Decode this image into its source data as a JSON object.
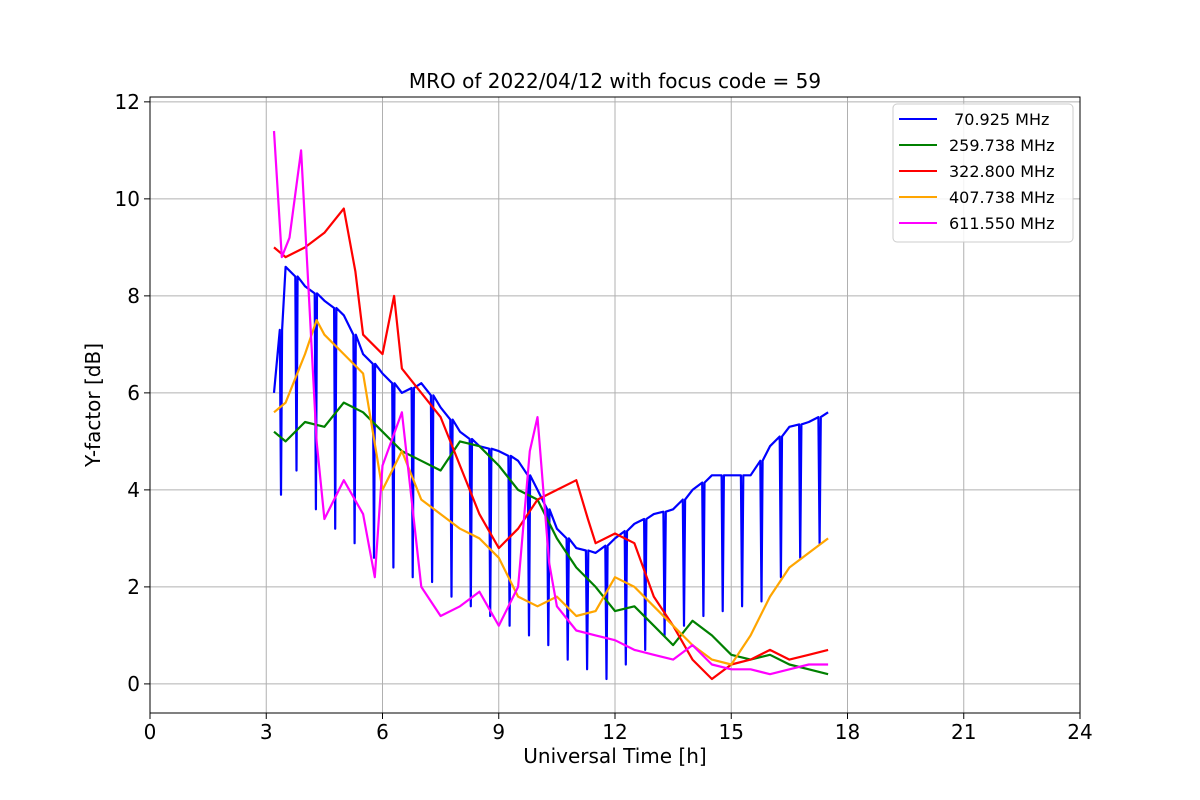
{
  "chart_data": {
    "type": "line",
    "title": "MRO of 2022/04/12 with focus code = 59",
    "xlabel": "Universal Time [h]",
    "ylabel": "Y-factor [dB]",
    "xlim": [
      0,
      24
    ],
    "ylim": [
      -0.6,
      12.1
    ],
    "xticks": [
      0,
      3,
      6,
      9,
      12,
      15,
      18,
      21,
      24
    ],
    "yticks": [
      0,
      2,
      4,
      6,
      8,
      10,
      12
    ],
    "grid": true,
    "legend_position": "top-right",
    "series": [
      {
        "name": " 70.925 MHz",
        "color": "#0000ff",
        "x": [
          3.2,
          3.5,
          4.0,
          4.5,
          5.0,
          5.5,
          6.0,
          6.5,
          7.0,
          7.5,
          8.0,
          8.5,
          9.0,
          9.5,
          10.0,
          10.5,
          11.0,
          11.5,
          12.0,
          12.5,
          13.0,
          13.5,
          14.0,
          14.5,
          15.0,
          15.5,
          16.0,
          16.5,
          17.0,
          17.5
        ],
        "values": [
          6.0,
          8.6,
          8.2,
          7.9,
          7.6,
          6.8,
          6.4,
          6.0,
          6.2,
          5.7,
          5.2,
          4.9,
          4.8,
          4.6,
          4.0,
          3.2,
          2.8,
          2.7,
          3.0,
          3.3,
          3.5,
          3.6,
          4.0,
          4.3,
          4.3,
          4.3,
          4.9,
          5.3,
          5.4,
          5.6
        ],
        "dip_to": [
          3.9,
          4.4,
          3.6,
          3.2,
          2.9,
          2.6,
          2.4,
          2.2,
          2.1,
          1.8,
          1.6,
          1.4,
          1.2,
          1.0,
          0.8,
          0.5,
          0.3,
          0.1,
          0.4,
          0.7,
          1.0,
          1.2,
          1.4,
          1.5,
          1.6,
          1.7,
          2.2,
          2.6,
          2.9,
          3.2
        ]
      },
      {
        "name": "259.738 MHz",
        "color": "#008000",
        "x": [
          3.2,
          3.5,
          4.0,
          4.5,
          5.0,
          5.5,
          6.0,
          6.5,
          7.0,
          7.5,
          8.0,
          8.5,
          9.0,
          9.5,
          10.0,
          10.5,
          11.0,
          11.5,
          12.0,
          12.5,
          13.0,
          13.5,
          14.0,
          14.5,
          15.0,
          15.5,
          16.0,
          16.5,
          17.0,
          17.5
        ],
        "values": [
          5.2,
          5.0,
          5.4,
          5.3,
          5.8,
          5.6,
          5.2,
          4.8,
          4.6,
          4.4,
          5.0,
          4.9,
          4.5,
          4.0,
          3.8,
          3.0,
          2.4,
          2.0,
          1.5,
          1.6,
          1.2,
          0.8,
          1.3,
          1.0,
          0.6,
          0.5,
          0.6,
          0.4,
          0.3,
          0.2
        ]
      },
      {
        "name": "322.800 MHz",
        "color": "#ff0000",
        "x": [
          3.2,
          3.5,
          4.0,
          4.5,
          5.0,
          5.3,
          5.5,
          6.0,
          6.3,
          6.5,
          7.0,
          7.5,
          8.0,
          8.5,
          9.0,
          9.5,
          10.0,
          10.5,
          11.0,
          11.3,
          11.5,
          12.0,
          12.5,
          13.0,
          13.5,
          14.0,
          14.5,
          15.0,
          15.5,
          16.0,
          16.5,
          17.0,
          17.5
        ],
        "values": [
          9.0,
          8.8,
          9.0,
          9.3,
          9.8,
          8.5,
          7.2,
          6.8,
          8.0,
          6.5,
          6.0,
          5.5,
          4.5,
          3.5,
          2.8,
          3.2,
          3.8,
          4.0,
          4.2,
          3.4,
          2.9,
          3.1,
          2.9,
          1.8,
          1.2,
          0.5,
          0.1,
          0.4,
          0.5,
          0.7,
          0.5,
          0.6,
          0.7
        ]
      },
      {
        "name": "407.738 MHz",
        "color": "#ffa500",
        "x": [
          3.2,
          3.5,
          4.0,
          4.3,
          4.5,
          5.0,
          5.5,
          6.0,
          6.5,
          7.0,
          7.5,
          8.0,
          8.5,
          9.0,
          9.5,
          10.0,
          10.5,
          11.0,
          11.5,
          12.0,
          12.5,
          13.0,
          13.5,
          14.0,
          14.5,
          15.0,
          15.5,
          16.0,
          16.5,
          17.0,
          17.5
        ],
        "values": [
          5.6,
          5.8,
          6.8,
          7.5,
          7.2,
          6.8,
          6.4,
          4.0,
          4.8,
          3.8,
          3.5,
          3.2,
          3.0,
          2.6,
          1.8,
          1.6,
          1.8,
          1.4,
          1.5,
          2.2,
          2.0,
          1.6,
          1.2,
          0.8,
          0.5,
          0.4,
          1.0,
          1.8,
          2.4,
          2.7,
          3.0
        ]
      },
      {
        "name": "611.550 MHz",
        "color": "#ff00ff",
        "x": [
          3.2,
          3.4,
          3.6,
          3.9,
          4.1,
          4.3,
          4.5,
          5.0,
          5.5,
          5.8,
          6.0,
          6.5,
          7.0,
          7.5,
          8.0,
          8.5,
          9.0,
          9.5,
          9.8,
          10.0,
          10.3,
          10.5,
          11.0,
          11.5,
          12.0,
          12.5,
          13.0,
          13.5,
          14.0,
          14.5,
          15.0,
          15.5,
          16.0,
          16.5,
          17.0,
          17.5
        ],
        "values": [
          11.4,
          8.8,
          9.2,
          11.0,
          8.0,
          5.0,
          3.4,
          4.2,
          3.5,
          2.2,
          4.5,
          5.6,
          2.0,
          1.4,
          1.6,
          1.9,
          1.2,
          2.0,
          4.8,
          5.5,
          2.5,
          1.6,
          1.1,
          1.0,
          0.9,
          0.7,
          0.6,
          0.5,
          0.8,
          0.4,
          0.3,
          0.3,
          0.2,
          0.3,
          0.4,
          0.4
        ]
      }
    ]
  }
}
